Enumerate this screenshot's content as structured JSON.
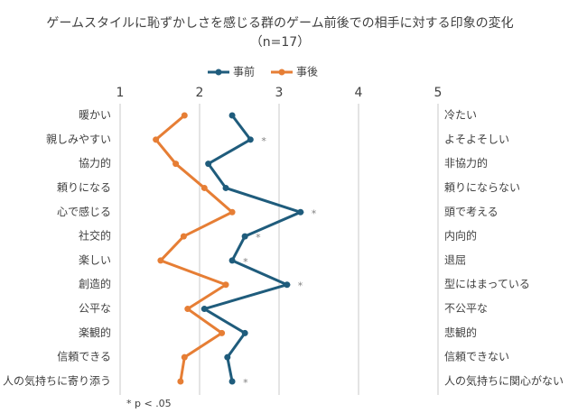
{
  "chart_data": {
    "type": "line",
    "title": "ゲームスタイルに恥ずかしさを感じる群のゲーム前後での相手に対する印象の変化",
    "subtitle": "（n=17）",
    "categories": [
      "暖かい",
      "親しみやすい",
      "協力的",
      "頼りになる",
      "心で感じる",
      "社交的",
      "楽しい",
      "創造的",
      "公平な",
      "楽観的",
      "信頼できる",
      "人の気持ちに寄り添う"
    ],
    "right_categories": [
      "冷たい",
      "よそよそしい",
      "非協力的",
      "頼りにならない",
      "頭で考える",
      "内向的",
      "退屈",
      "型にはまっている",
      "不公平な",
      "悲観的",
      "信頼できない",
      "人の気持ちに関心がない"
    ],
    "series": [
      {
        "name": "事前",
        "color": "#1f5c7c",
        "values": [
          2.41,
          2.64,
          2.11,
          2.33,
          3.27,
          2.57,
          2.41,
          3.1,
          2.06,
          2.57,
          2.35,
          2.41
        ]
      },
      {
        "name": "事後",
        "color": "#e67e35",
        "values": [
          1.81,
          1.45,
          1.7,
          2.06,
          2.41,
          1.8,
          1.51,
          2.33,
          1.85,
          2.28,
          1.81,
          1.76
        ]
      }
    ],
    "annotations": [
      null,
      "*",
      null,
      null,
      "*",
      "*",
      "*",
      "*",
      null,
      null,
      null,
      "*"
    ],
    "footnote": "* p < .05",
    "xlim": [
      1,
      5
    ],
    "xticks": [
      1,
      2,
      3,
      4,
      5
    ],
    "grid": true,
    "legend": "top"
  }
}
